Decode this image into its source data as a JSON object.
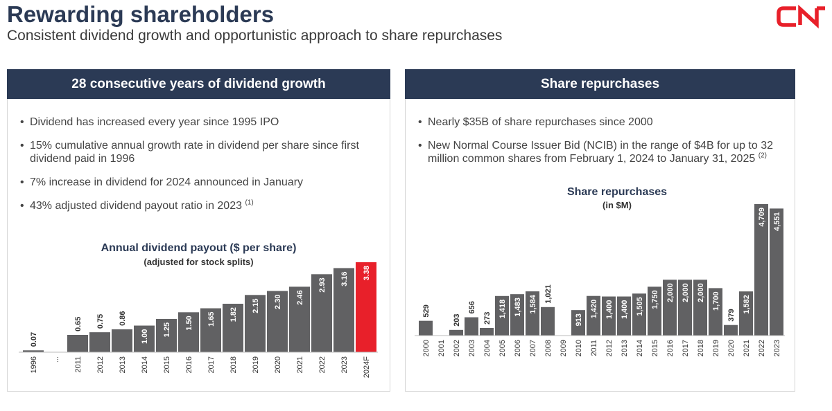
{
  "header": {
    "title": "Rewarding shareholders",
    "subtitle": "Consistent dividend growth and opportunistic approach to share repurchases",
    "logo_text": "CN"
  },
  "left_panel": {
    "heading": "28 consecutive years of dividend growth",
    "bullets": [
      {
        "text": "Dividend has increased every year since 1995 IPO",
        "sup": ""
      },
      {
        "text": "15% cumulative annual growth rate in dividend per share since first dividend paid in 1996",
        "sup": ""
      },
      {
        "text": "7% increase in dividend for 2024 announced in January",
        "sup": ""
      },
      {
        "text": "43% adjusted dividend payout ratio in 2023",
        "sup": "(1)"
      }
    ]
  },
  "right_panel": {
    "heading": "Share repurchases",
    "bullets": [
      {
        "text": "Nearly $35B of share repurchases since 2000",
        "sup": ""
      },
      {
        "text": "New Normal Course Issuer Bid (NCIB) in the range of $4B for up to 32 million common shares from February 1, 2024 to January 31, 2025",
        "sup": "(2)"
      }
    ]
  },
  "colors": {
    "navy": "#2b3a55",
    "bar_gray": "#616163",
    "highlight_red": "#e8202a"
  },
  "chart_data": [
    {
      "type": "bar",
      "title": "Annual dividend payout ($ per share)",
      "subtitle": "(adjusted for stock splits)",
      "categories": [
        "1996",
        "...",
        "2011",
        "2012",
        "2013",
        "2014",
        "2015",
        "2016",
        "2017",
        "2018",
        "2019",
        "2020",
        "2021",
        "2022",
        "2023",
        "2024F"
      ],
      "values": [
        0.07,
        null,
        0.65,
        0.75,
        0.86,
        1.0,
        1.25,
        1.5,
        1.65,
        1.82,
        2.15,
        2.3,
        2.46,
        2.93,
        3.16,
        3.38
      ],
      "labels": [
        "0.07",
        "",
        "0.65",
        "0.75",
        "0.86",
        "1.00",
        "1.25",
        "1.50",
        "1.65",
        "1.82",
        "2.15",
        "2.30",
        "2.46",
        "2.93",
        "3.16",
        "3.38"
      ],
      "highlight": "2024F",
      "ylim": [
        0,
        3.38
      ],
      "grid": false,
      "xlabel": "",
      "ylabel": ""
    },
    {
      "type": "bar",
      "title": "Share repurchases",
      "subtitle": "(in $M)",
      "categories": [
        "2000",
        "2001",
        "2002",
        "2003",
        "2004",
        "2005",
        "2006",
        "2007",
        "2008",
        "2009",
        "2010",
        "2011",
        "2012",
        "2013",
        "2014",
        "2015",
        "2016",
        "2017",
        "2018",
        "2019",
        "2020",
        "2021",
        "2022",
        "2023"
      ],
      "values": [
        529,
        0,
        203,
        656,
        273,
        1418,
        1483,
        1584,
        1021,
        0,
        913,
        1420,
        1400,
        1400,
        1505,
        1750,
        2000,
        2000,
        2000,
        1700,
        379,
        1582,
        4709,
        4551
      ],
      "labels": [
        "529",
        "",
        "203",
        "656",
        "273",
        "1,418",
        "1,483",
        "1,584",
        "1,021",
        "",
        "913",
        "1,420",
        "1,400",
        "1,400",
        "1,505",
        "1,750",
        "2,000",
        "2,000",
        "2,000",
        "1,700",
        "379",
        "1,582",
        "4,709",
        "4,551"
      ],
      "ylim": [
        0,
        4709
      ],
      "grid": false,
      "xlabel": "",
      "ylabel": ""
    }
  ]
}
